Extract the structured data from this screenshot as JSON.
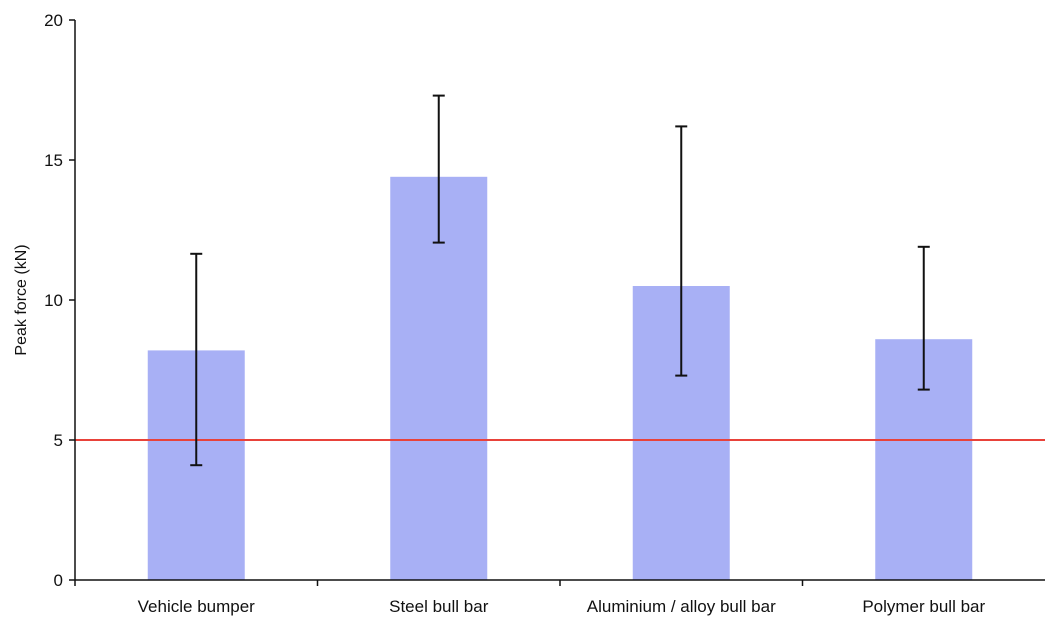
{
  "chart_data": {
    "type": "bar",
    "title": "",
    "xlabel": "",
    "ylabel": "Peak force (kN)",
    "ylim": [
      0,
      20
    ],
    "yticks": [
      "0",
      "5",
      "10",
      "15",
      "20"
    ],
    "categories": [
      "Vehicle bumper",
      "Steel bull bar",
      "Aluminium / alloy bull bar",
      "Polymer bull bar"
    ],
    "series": [
      {
        "values": [
          8.2,
          14.4,
          10.5,
          8.6
        ],
        "error_low": [
          4.1,
          12.05,
          7.3,
          6.8
        ],
        "error_high": [
          11.65,
          17.3,
          16.2,
          11.9
        ]
      }
    ],
    "reference_line": {
      "value": 5,
      "color": "#e8423a"
    },
    "grid": false,
    "legend": "none",
    "colors": {
      "bar": "#a8b0f5",
      "error_bar": "#111111",
      "axis": "#111111"
    }
  }
}
